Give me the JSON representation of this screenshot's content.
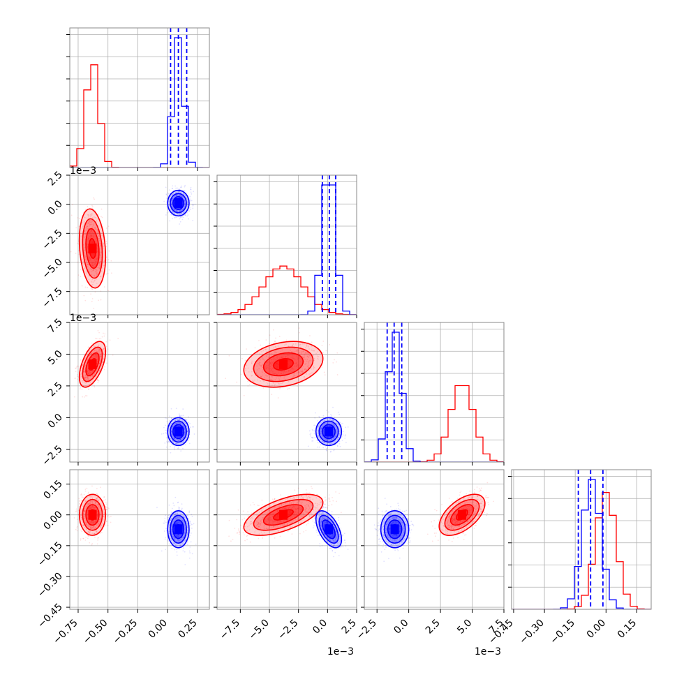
{
  "chart_data": {
    "type": "corner",
    "title": "",
    "grid": true,
    "colors": {
      "red": "#ff0000",
      "blue": "#0000ff",
      "grid": "#b0b0b0",
      "panel_edge": "#888888"
    },
    "parameters": [
      {
        "range": [
          -0.82,
          0.35
        ],
        "ticks": [
          -0.75,
          -0.5,
          -0.25,
          0.0,
          0.25
        ],
        "tick_labels": [
          "−0.75",
          "−0.50",
          "−0.25",
          "0.00",
          "0.25"
        ],
        "offset_label": ""
      },
      {
        "range": [
          -9.5,
          2.5
        ],
        "ticks": [
          -7.5,
          -5.0,
          -2.5,
          0.0,
          2.5
        ],
        "tick_labels": [
          "−7.5",
          "−5.0",
          "−2.5",
          "0.0",
          "2.5"
        ],
        "offset_label": "1e−3"
      },
      {
        "range": [
          -3.5,
          7.5
        ],
        "ticks": [
          -2.5,
          0.0,
          2.5,
          5.0,
          7.5
        ],
        "tick_labels": [
          "−2.5",
          "0.0",
          "2.5",
          "5.0",
          "7.5"
        ],
        "offset_label": "1e−3"
      },
      {
        "range": [
          -0.46,
          0.22
        ],
        "ticks": [
          -0.45,
          -0.3,
          -0.15,
          0.0,
          0.15
        ],
        "tick_labels": [
          "−0.45",
          "−0.30",
          "−0.15",
          "0.00",
          "0.15"
        ],
        "offset_label": ""
      }
    ],
    "series": [
      {
        "color": "red",
        "mean": [
          -0.63,
          -3.8,
          4.2,
          0.0
        ],
        "sigma": [
          0.055,
          1.7,
          0.9,
          0.05
        ],
        "corr": {
          "1-0": -0.2,
          "2-0": 0.55,
          "2-1": 0.25,
          "3-0": 0.0,
          "3-1": 0.6,
          "3-2": 0.55
        },
        "quantile_lines": []
      },
      {
        "color": "blue",
        "mean": [
          0.09,
          0.1,
          -1.1,
          -0.07
        ],
        "sigma": [
          0.045,
          0.55,
          0.55,
          0.045
        ],
        "corr": {
          "1-0": 0.0,
          "2-0": 0.0,
          "2-1": 0.0,
          "3-0": 0.0,
          "3-1": -0.55,
          "3-2": 0.0
        },
        "quantile_lines": [
          [
            0.025,
            0.09,
            0.16
          ],
          [
            -0.45,
            0.15,
            0.7
          ],
          [
            -1.7,
            -1.15,
            -0.55
          ],
          [
            -0.135,
            -0.075,
            -0.015
          ]
        ]
      }
    ]
  }
}
